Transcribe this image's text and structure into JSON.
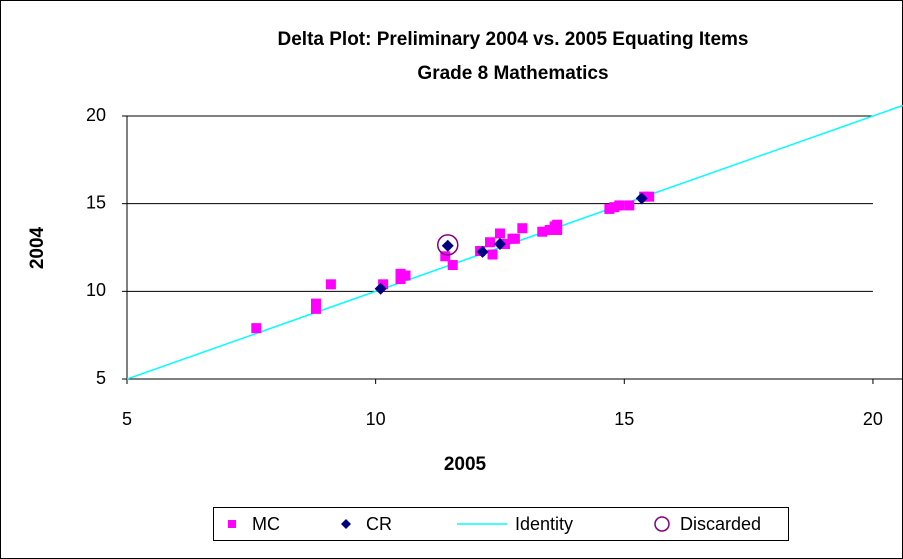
{
  "chart_data": {
    "type": "scatter",
    "title": "Delta Plot: Preliminary 2004 vs. 2005 Equating Items",
    "subtitle": "Grade 8 Mathematics",
    "x_label": "2005",
    "y_label": "2004",
    "xlim": [
      5,
      20.6
    ],
    "ylim": [
      5,
      20
    ],
    "xticks": [
      5,
      10,
      15,
      20
    ],
    "yticks": [
      5,
      10,
      15,
      20
    ],
    "grid": true,
    "legend": "bottom",
    "series": [
      {
        "name": "MC",
        "color": "#ff00ff",
        "marker": "square",
        "x": [
          7.6,
          8.8,
          8.8,
          9.1,
          10.15,
          10.5,
          10.5,
          10.6,
          11.4,
          11.55,
          12.1,
          12.3,
          12.35,
          12.5,
          12.6,
          12.75,
          12.8,
          12.95,
          13.35,
          13.5,
          13.6,
          13.65,
          13.65,
          14.7,
          14.8,
          14.9,
          15.1,
          15.4,
          15.5
        ],
        "values": [
          7.9,
          9.0,
          9.3,
          10.4,
          10.4,
          10.7,
          11.0,
          10.9,
          12.0,
          11.5,
          12.3,
          12.8,
          12.1,
          13.3,
          12.7,
          13.0,
          13.0,
          13.6,
          13.4,
          13.5,
          13.7,
          13.8,
          13.5,
          14.7,
          14.8,
          14.9,
          14.9,
          15.4,
          15.4
        ]
      },
      {
        "name": "CR",
        "color": "#000080",
        "marker": "diamond",
        "x": [
          10.1,
          11.45,
          12.15,
          12.5,
          15.35
        ],
        "values": [
          10.15,
          12.6,
          12.25,
          12.7,
          15.3
        ]
      },
      {
        "name": "Identity",
        "color": "#00ffff",
        "marker": "line",
        "x": [
          5,
          20.6
        ],
        "values": [
          5,
          20.6
        ]
      },
      {
        "name": "Discarded",
        "color": "#800080",
        "marker": "circle",
        "x": [
          11.45
        ],
        "values": [
          12.65
        ]
      }
    ]
  }
}
